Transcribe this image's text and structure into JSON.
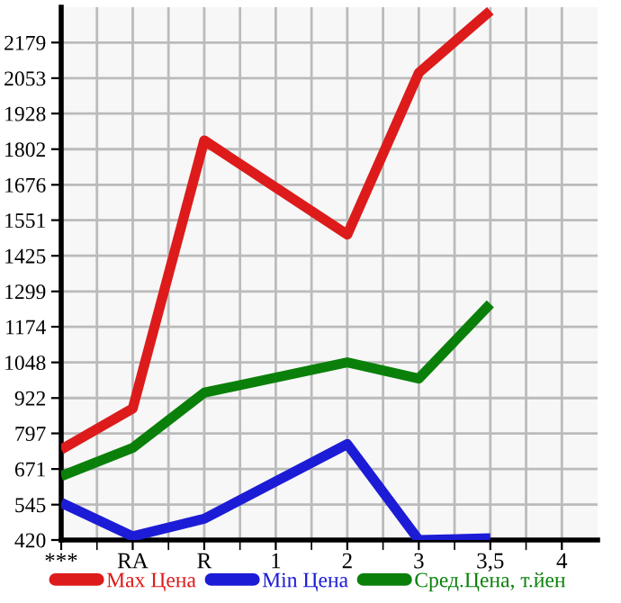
{
  "chart_data": {
    "type": "line",
    "categories": [
      "***",
      "RA",
      "R",
      "1",
      "2",
      "3",
      "3,5",
      "4"
    ],
    "series": [
      {
        "name": "Max Цена",
        "color": "#dd1b1b",
        "values": [
          740,
          885,
          1833,
          null,
          1500,
          2072,
          2291,
          null
        ]
      },
      {
        "name": "Min Цена",
        "color": "#1c1cd6",
        "values": [
          552,
          433,
          495,
          null,
          759,
          420,
          426,
          null
        ]
      },
      {
        "name": "Сред.Цена, т.йен",
        "color": "#0a800a",
        "values": [
          646,
          746,
          941,
          null,
          1048,
          991,
          1255,
          null
        ]
      }
    ],
    "ylim": [
      420,
      2304
    ],
    "yticks": [
      420,
      545,
      671,
      797,
      922,
      1048,
      1174,
      1299,
      1425,
      1551,
      1676,
      1802,
      1928,
      2053,
      2179
    ],
    "grid": true,
    "legend": "bottom",
    "marker": "none",
    "line_style": "solid"
  }
}
